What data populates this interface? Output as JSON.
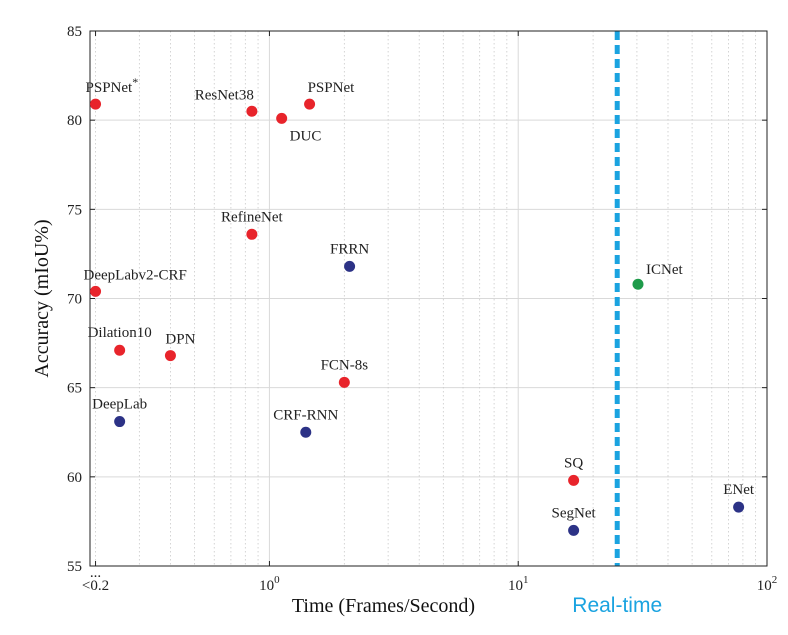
{
  "colors": {
    "red": "#e8242b",
    "blue": "#2c3286",
    "green": "#1e9b4a",
    "realtime": "#1aa3e0",
    "grid_major": "#d9d9d9",
    "grid_minor": "#c9c9c9",
    "axis": "#222222"
  },
  "chart_data": {
    "type": "scatter",
    "xscale": "log",
    "xlim": [
      0.19,
      100
    ],
    "ylim": [
      55,
      85
    ],
    "xlabel": "Time (Frames/Second)",
    "ylabel": "Accuracy (mIoU%)",
    "grid": true,
    "y_ticks": [
      55,
      60,
      65,
      70,
      75,
      80,
      85
    ],
    "x_ticks": [
      {
        "value": 0.2,
        "base": "<0.2",
        "exp": ""
      },
      {
        "value": 1,
        "base": "10",
        "exp": "0"
      },
      {
        "value": 10,
        "base": "10",
        "exp": "1"
      },
      {
        "value": 100,
        "base": "10",
        "exp": "2"
      }
    ],
    "x_axis_break_label": "...",
    "realtime_line": {
      "x": 25,
      "label": "Real-time"
    },
    "points": [
      {
        "name": "PSPNet",
        "sup": "*",
        "x": 0.2,
        "y": 80.9,
        "color": "red",
        "label_pos": "above-left"
      },
      {
        "name": "ResNet38",
        "sup": "",
        "x": 0.85,
        "y": 80.5,
        "color": "red",
        "label_pos": "above-left"
      },
      {
        "name": "PSPNet",
        "sup": "",
        "x": 1.45,
        "y": 80.9,
        "color": "red",
        "label_pos": "above-right"
      },
      {
        "name": "DUC",
        "sup": "",
        "x": 1.12,
        "y": 80.1,
        "color": "red",
        "label_pos": "below-right"
      },
      {
        "name": "RefineNet",
        "sup": "",
        "x": 0.85,
        "y": 73.6,
        "color": "red",
        "label_pos": "above"
      },
      {
        "name": "FRRN",
        "sup": "",
        "x": 2.1,
        "y": 71.8,
        "color": "blue",
        "label_pos": "above"
      },
      {
        "name": "DeepLabv2-CRF",
        "sup": "",
        "x": 0.2,
        "y": 70.4,
        "color": "red",
        "label_pos": "above-right"
      },
      {
        "name": "ICNet",
        "sup": "",
        "x": 30.3,
        "y": 70.8,
        "color": "green",
        "label_pos": "above-right"
      },
      {
        "name": "Dilation10",
        "sup": "",
        "x": 0.25,
        "y": 67.1,
        "color": "red",
        "label_pos": "above"
      },
      {
        "name": "DPN",
        "sup": "",
        "x": 0.4,
        "y": 66.8,
        "color": "red",
        "label_pos": "above-right"
      },
      {
        "name": "FCN-8s",
        "sup": "",
        "x": 2.0,
        "y": 65.3,
        "color": "red",
        "label_pos": "above"
      },
      {
        "name": "DeepLab",
        "sup": "",
        "x": 0.25,
        "y": 63.1,
        "color": "blue",
        "label_pos": "above"
      },
      {
        "name": "CRF-RNN",
        "sup": "",
        "x": 1.4,
        "y": 62.5,
        "color": "blue",
        "label_pos": "above"
      },
      {
        "name": "SQ",
        "sup": "",
        "x": 16.7,
        "y": 59.8,
        "color": "red",
        "label_pos": "above"
      },
      {
        "name": "SegNet",
        "sup": "",
        "x": 16.7,
        "y": 57.0,
        "color": "blue",
        "label_pos": "above"
      },
      {
        "name": "ENet",
        "sup": "",
        "x": 76.9,
        "y": 58.3,
        "color": "blue",
        "label_pos": "above"
      }
    ]
  }
}
